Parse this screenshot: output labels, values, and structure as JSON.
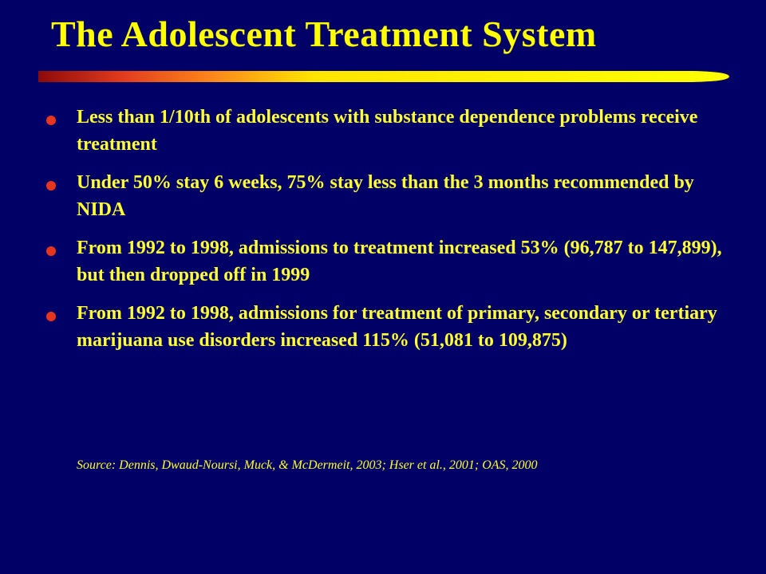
{
  "slide": {
    "title": "The Adolescent Treatment System",
    "colors": {
      "background": "#000066",
      "text": "#FFFF33",
      "bullet": "#E8361E",
      "bar_gradient": [
        "#8B0A0A",
        "#E23A1C",
        "#FF8C1A",
        "#FFE600",
        "#FFFF00"
      ]
    },
    "bullets": [
      {
        "text": "Less than 1/10th of adolescents with substance dependence problems receive treatment"
      },
      {
        "text": "Under 50% stay 6 weeks, 75% stay less than the 3 months recommended by NIDA"
      },
      {
        "text": "From 1992 to 1998, admissions to treatment increased 53% (96,787 to 147,899), but then dropped off in 1999"
      },
      {
        "text": "From 1992 to 1998, admissions for treatment of primary, secondary or tertiary marijuana use disorders increased 115% (51,081 to 109,875)"
      }
    ],
    "source": "Source:  Dennis, Dwaud-Noursi, Muck, & McDermeit, 2003; Hser et al., 2001; OAS, 2000"
  }
}
